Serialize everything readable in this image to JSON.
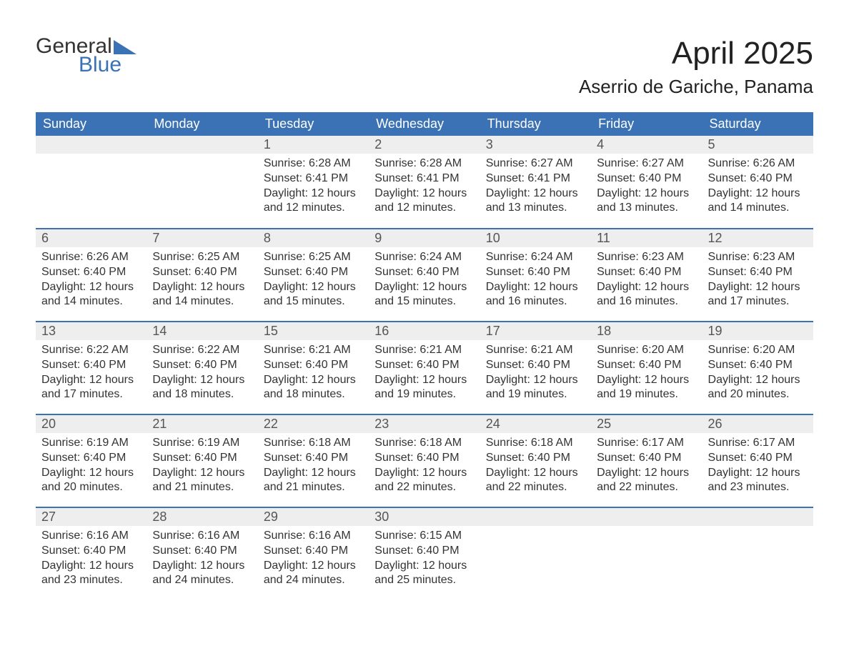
{
  "logo": {
    "word1": "General",
    "word2": "Blue",
    "accent_color": "#3a72b5"
  },
  "title": "April 2025",
  "location": "Aserrio de Gariche, Panama",
  "colors": {
    "header_bg": "#3a72b5",
    "header_fg": "#ffffff",
    "daynum_bg": "#eeeeee",
    "row_divider": "#3a72b5",
    "text": "#333333",
    "background": "#ffffff"
  },
  "day_headers": [
    "Sunday",
    "Monday",
    "Tuesday",
    "Wednesday",
    "Thursday",
    "Friday",
    "Saturday"
  ],
  "weeks": [
    [
      {
        "blank": true
      },
      {
        "blank": true
      },
      {
        "n": "1",
        "sunrise": "6:28 AM",
        "sunset": "6:41 PM",
        "daylight": "12 hours and 12 minutes."
      },
      {
        "n": "2",
        "sunrise": "6:28 AM",
        "sunset": "6:41 PM",
        "daylight": "12 hours and 12 minutes."
      },
      {
        "n": "3",
        "sunrise": "6:27 AM",
        "sunset": "6:41 PM",
        "daylight": "12 hours and 13 minutes."
      },
      {
        "n": "4",
        "sunrise": "6:27 AM",
        "sunset": "6:40 PM",
        "daylight": "12 hours and 13 minutes."
      },
      {
        "n": "5",
        "sunrise": "6:26 AM",
        "sunset": "6:40 PM",
        "daylight": "12 hours and 14 minutes."
      }
    ],
    [
      {
        "n": "6",
        "sunrise": "6:26 AM",
        "sunset": "6:40 PM",
        "daylight": "12 hours and 14 minutes."
      },
      {
        "n": "7",
        "sunrise": "6:25 AM",
        "sunset": "6:40 PM",
        "daylight": "12 hours and 14 minutes."
      },
      {
        "n": "8",
        "sunrise": "6:25 AM",
        "sunset": "6:40 PM",
        "daylight": "12 hours and 15 minutes."
      },
      {
        "n": "9",
        "sunrise": "6:24 AM",
        "sunset": "6:40 PM",
        "daylight": "12 hours and 15 minutes."
      },
      {
        "n": "10",
        "sunrise": "6:24 AM",
        "sunset": "6:40 PM",
        "daylight": "12 hours and 16 minutes."
      },
      {
        "n": "11",
        "sunrise": "6:23 AM",
        "sunset": "6:40 PM",
        "daylight": "12 hours and 16 minutes."
      },
      {
        "n": "12",
        "sunrise": "6:23 AM",
        "sunset": "6:40 PM",
        "daylight": "12 hours and 17 minutes."
      }
    ],
    [
      {
        "n": "13",
        "sunrise": "6:22 AM",
        "sunset": "6:40 PM",
        "daylight": "12 hours and 17 minutes."
      },
      {
        "n": "14",
        "sunrise": "6:22 AM",
        "sunset": "6:40 PM",
        "daylight": "12 hours and 18 minutes."
      },
      {
        "n": "15",
        "sunrise": "6:21 AM",
        "sunset": "6:40 PM",
        "daylight": "12 hours and 18 minutes."
      },
      {
        "n": "16",
        "sunrise": "6:21 AM",
        "sunset": "6:40 PM",
        "daylight": "12 hours and 19 minutes."
      },
      {
        "n": "17",
        "sunrise": "6:21 AM",
        "sunset": "6:40 PM",
        "daylight": "12 hours and 19 minutes."
      },
      {
        "n": "18",
        "sunrise": "6:20 AM",
        "sunset": "6:40 PM",
        "daylight": "12 hours and 19 minutes."
      },
      {
        "n": "19",
        "sunrise": "6:20 AM",
        "sunset": "6:40 PM",
        "daylight": "12 hours and 20 minutes."
      }
    ],
    [
      {
        "n": "20",
        "sunrise": "6:19 AM",
        "sunset": "6:40 PM",
        "daylight": "12 hours and 20 minutes."
      },
      {
        "n": "21",
        "sunrise": "6:19 AM",
        "sunset": "6:40 PM",
        "daylight": "12 hours and 21 minutes."
      },
      {
        "n": "22",
        "sunrise": "6:18 AM",
        "sunset": "6:40 PM",
        "daylight": "12 hours and 21 minutes."
      },
      {
        "n": "23",
        "sunrise": "6:18 AM",
        "sunset": "6:40 PM",
        "daylight": "12 hours and 22 minutes."
      },
      {
        "n": "24",
        "sunrise": "6:18 AM",
        "sunset": "6:40 PM",
        "daylight": "12 hours and 22 minutes."
      },
      {
        "n": "25",
        "sunrise": "6:17 AM",
        "sunset": "6:40 PM",
        "daylight": "12 hours and 22 minutes."
      },
      {
        "n": "26",
        "sunrise": "6:17 AM",
        "sunset": "6:40 PM",
        "daylight": "12 hours and 23 minutes."
      }
    ],
    [
      {
        "n": "27",
        "sunrise": "6:16 AM",
        "sunset": "6:40 PM",
        "daylight": "12 hours and 23 minutes."
      },
      {
        "n": "28",
        "sunrise": "6:16 AM",
        "sunset": "6:40 PM",
        "daylight": "12 hours and 24 minutes."
      },
      {
        "n": "29",
        "sunrise": "6:16 AM",
        "sunset": "6:40 PM",
        "daylight": "12 hours and 24 minutes."
      },
      {
        "n": "30",
        "sunrise": "6:15 AM",
        "sunset": "6:40 PM",
        "daylight": "12 hours and 25 minutes."
      },
      {
        "blank": true
      },
      {
        "blank": true
      },
      {
        "blank": true
      }
    ]
  ],
  "labels": {
    "sunrise_prefix": "Sunrise: ",
    "sunset_prefix": "Sunset: ",
    "daylight_prefix": "Daylight: "
  }
}
